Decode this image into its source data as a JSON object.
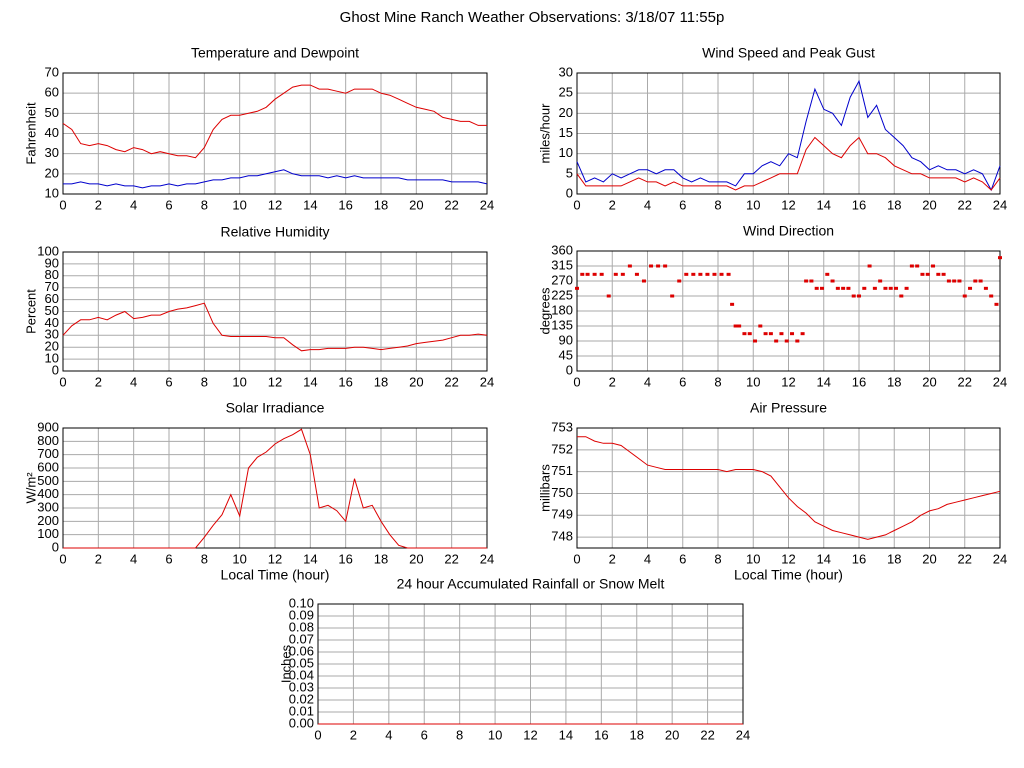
{
  "title": "Ghost Mine Ranch Weather Observations: 3/18/07 11:55p",
  "chart_data": [
    {
      "type": "line",
      "title": "Temperature and Dewpoint",
      "y_label": "Fahrenheit",
      "xlim": [
        0,
        24
      ],
      "xticks": [
        0,
        2,
        4,
        6,
        8,
        10,
        12,
        14,
        16,
        18,
        20,
        22,
        24
      ],
      "ylim": [
        10,
        70
      ],
      "yticks": [
        10,
        20,
        30,
        40,
        50,
        60,
        70
      ],
      "grid": true,
      "x": [
        0,
        0.5,
        1,
        1.5,
        2,
        2.5,
        3,
        3.5,
        4,
        4.5,
        5,
        5.5,
        6,
        6.5,
        7,
        7.5,
        8,
        8.5,
        9,
        9.5,
        10,
        10.5,
        11,
        11.5,
        12,
        12.5,
        13,
        13.5,
        14,
        14.5,
        15,
        15.5,
        16,
        16.5,
        17,
        17.5,
        18,
        18.5,
        19,
        19.5,
        20,
        20.5,
        21,
        21.5,
        22,
        22.5,
        23,
        23.5,
        24
      ],
      "series": [
        {
          "color": "#dd0000",
          "values": [
            45,
            42,
            35,
            34,
            35,
            34,
            32,
            31,
            33,
            32,
            30,
            31,
            30,
            29,
            29,
            28,
            33,
            42,
            47,
            49,
            49,
            50,
            51,
            53,
            57,
            60,
            63,
            64,
            64,
            62,
            62,
            61,
            60,
            62,
            62,
            62,
            60,
            59,
            57,
            55,
            53,
            52,
            51,
            48,
            47,
            46,
            46,
            44,
            44
          ]
        },
        {
          "color": "#0000cc",
          "values": [
            15,
            15,
            16,
            15,
            15,
            14,
            15,
            14,
            14,
            13,
            14,
            14,
            15,
            14,
            15,
            15,
            16,
            17,
            17,
            18,
            18,
            19,
            19,
            20,
            21,
            22,
            20,
            19,
            19,
            19,
            18,
            19,
            18,
            19,
            18,
            18,
            18,
            18,
            18,
            17,
            17,
            17,
            17,
            17,
            16,
            16,
            16,
            16,
            15
          ]
        }
      ]
    },
    {
      "type": "line",
      "title": "Wind Speed and Peak Gust",
      "y_label": "miles/hour",
      "xlim": [
        0,
        24
      ],
      "xticks": [
        0,
        2,
        4,
        6,
        8,
        10,
        12,
        14,
        16,
        18,
        20,
        22,
        24
      ],
      "ylim": [
        0,
        30
      ],
      "yticks": [
        0,
        5,
        10,
        15,
        20,
        25,
        30
      ],
      "grid": true,
      "x": [
        0,
        0.5,
        1,
        1.5,
        2,
        2.5,
        3,
        3.5,
        4,
        4.5,
        5,
        5.5,
        6,
        6.5,
        7,
        7.5,
        8,
        8.5,
        9,
        9.5,
        10,
        10.5,
        11,
        11.5,
        12,
        12.5,
        13,
        13.5,
        14,
        14.5,
        15,
        15.5,
        16,
        16.5,
        17,
        17.5,
        18,
        18.5,
        19,
        19.5,
        20,
        20.5,
        21,
        21.5,
        22,
        22.5,
        23,
        23.5,
        24
      ],
      "series": [
        {
          "color": "#0000cc",
          "values": [
            8,
            3,
            4,
            3,
            5,
            4,
            5,
            6,
            6,
            5,
            6,
            6,
            4,
            3,
            4,
            3,
            3,
            3,
            2,
            5,
            5,
            7,
            8,
            7,
            10,
            9,
            18,
            26,
            21,
            20,
            17,
            24,
            28,
            19,
            22,
            16,
            14,
            12,
            9,
            8,
            6,
            7,
            6,
            6,
            5,
            6,
            5,
            1,
            7
          ]
        },
        {
          "color": "#dd0000",
          "values": [
            5,
            2,
            2,
            2,
            2,
            2,
            3,
            4,
            3,
            3,
            2,
            3,
            2,
            2,
            2,
            2,
            2,
            2,
            1,
            2,
            2,
            3,
            4,
            5,
            5,
            5,
            11,
            14,
            12,
            10,
            9,
            12,
            14,
            10,
            10,
            9,
            7,
            6,
            5,
            5,
            4,
            4,
            4,
            4,
            3,
            4,
            3,
            1,
            4
          ]
        }
      ]
    },
    {
      "type": "line",
      "title": "Relative Humidity",
      "y_label": "Percent",
      "xlim": [
        0,
        24
      ],
      "xticks": [
        0,
        2,
        4,
        6,
        8,
        10,
        12,
        14,
        16,
        18,
        20,
        22,
        24
      ],
      "ylim": [
        0,
        100
      ],
      "yticks": [
        0,
        10,
        20,
        30,
        40,
        50,
        60,
        70,
        80,
        90,
        100
      ],
      "grid": true,
      "x": [
        0,
        0.5,
        1,
        1.5,
        2,
        2.5,
        3,
        3.5,
        4,
        4.5,
        5,
        5.5,
        6,
        6.5,
        7,
        7.5,
        8,
        8.5,
        9,
        9.5,
        10,
        10.5,
        11,
        11.5,
        12,
        12.5,
        13,
        13.5,
        14,
        14.5,
        15,
        15.5,
        16,
        16.5,
        17,
        17.5,
        18,
        18.5,
        19,
        19.5,
        20,
        20.5,
        21,
        21.5,
        22,
        22.5,
        23,
        23.5,
        24
      ],
      "series": [
        {
          "color": "#dd0000",
          "values": [
            30,
            38,
            43,
            43,
            45,
            43,
            47,
            50,
            44,
            45,
            47,
            47,
            50,
            52,
            53,
            55,
            57,
            40,
            30,
            29,
            29,
            29,
            29,
            29,
            28,
            28,
            22,
            17,
            18,
            18,
            19,
            19,
            19,
            20,
            20,
            19,
            18,
            19,
            20,
            21,
            23,
            24,
            25,
            26,
            28,
            30,
            30,
            31,
            30
          ]
        }
      ]
    },
    {
      "type": "scatter",
      "title": "Wind Direction",
      "y_label": "degrees",
      "xlim": [
        0,
        24
      ],
      "xticks": [
        0,
        2,
        4,
        6,
        8,
        10,
        12,
        14,
        16,
        18,
        20,
        22,
        24
      ],
      "ylim": [
        0,
        360
      ],
      "yticks": [
        0,
        45,
        90,
        135,
        180,
        225,
        270,
        315,
        360
      ],
      "grid": true,
      "x": [
        0,
        0.3,
        0.6,
        1,
        1.4,
        1.8,
        2.2,
        2.6,
        3,
        3.4,
        3.8,
        4.2,
        4.6,
        5,
        5.4,
        5.8,
        6.2,
        6.6,
        7,
        7.4,
        7.8,
        8.2,
        8.6,
        8.8,
        9,
        9.2,
        9.5,
        9.8,
        10.1,
        10.4,
        10.7,
        11,
        11.3,
        11.6,
        11.9,
        12.2,
        12.5,
        12.8,
        13,
        13.3,
        13.6,
        13.9,
        14.2,
        14.5,
        14.8,
        15.1,
        15.4,
        15.7,
        16,
        16.3,
        16.6,
        16.9,
        17.2,
        17.5,
        17.8,
        18.1,
        18.4,
        18.7,
        19,
        19.3,
        19.6,
        19.9,
        20.2,
        20.5,
        20.8,
        21.1,
        21.4,
        21.7,
        22,
        22.3,
        22.6,
        22.9,
        23.2,
        23.5,
        23.8,
        24
      ],
      "series": [
        {
          "color": "#dd0000",
          "values": [
            248,
            290,
            290,
            290,
            290,
            225,
            290,
            290,
            315,
            290,
            270,
            315,
            315,
            315,
            225,
            270,
            290,
            290,
            290,
            290,
            290,
            290,
            290,
            200,
            135,
            135,
            112,
            112,
            90,
            135,
            112,
            112,
            90,
            112,
            90,
            112,
            90,
            112,
            270,
            270,
            248,
            248,
            290,
            270,
            248,
            248,
            248,
            225,
            225,
            248,
            315,
            248,
            270,
            248,
            248,
            248,
            225,
            248,
            315,
            315,
            290,
            290,
            315,
            290,
            290,
            270,
            270,
            270,
            225,
            248,
            270,
            270,
            248,
            225,
            200,
            340
          ]
        }
      ]
    },
    {
      "type": "line",
      "title": "Solar Irradiance",
      "y_label": "W/m²",
      "x_label": "Local Time (hour)",
      "xlim": [
        0,
        24
      ],
      "xticks": [
        0,
        2,
        4,
        6,
        8,
        10,
        12,
        14,
        16,
        18,
        20,
        22,
        24
      ],
      "ylim": [
        0,
        900
      ],
      "yticks": [
        0,
        100,
        200,
        300,
        400,
        500,
        600,
        700,
        800,
        900
      ],
      "grid": true,
      "x": [
        0,
        0.5,
        1,
        1.5,
        2,
        2.5,
        3,
        3.5,
        4,
        4.5,
        5,
        5.5,
        6,
        6.5,
        7,
        7.5,
        8,
        8.5,
        9,
        9.5,
        10,
        10.5,
        11,
        11.5,
        12,
        12.5,
        13,
        13.5,
        14,
        14.5,
        15,
        15.5,
        16,
        16.5,
        17,
        17.5,
        18,
        18.5,
        19,
        19.5,
        20,
        20.5,
        21,
        21.5,
        22,
        22.5,
        23,
        23.5,
        24
      ],
      "series": [
        {
          "color": "#dd0000",
          "values": [
            0,
            0,
            0,
            0,
            0,
            0,
            0,
            0,
            0,
            0,
            0,
            0,
            0,
            0,
            0,
            0,
            80,
            170,
            250,
            400,
            240,
            600,
            680,
            720,
            780,
            820,
            850,
            890,
            700,
            300,
            320,
            280,
            200,
            520,
            300,
            320,
            200,
            100,
            20,
            0,
            0,
            0,
            0,
            0,
            0,
            0,
            0,
            0,
            0
          ]
        }
      ]
    },
    {
      "type": "line",
      "title": "Air Pressure",
      "y_label": "millibars",
      "x_label": "Local Time (hour)",
      "xlim": [
        0,
        24
      ],
      "xticks": [
        0,
        2,
        4,
        6,
        8,
        10,
        12,
        14,
        16,
        18,
        20,
        22,
        24
      ],
      "ylim": [
        747.5,
        753
      ],
      "yticks": [
        748,
        749,
        750,
        751,
        752,
        753
      ],
      "grid": true,
      "x": [
        0,
        0.5,
        1,
        1.5,
        2,
        2.5,
        3,
        3.5,
        4,
        4.5,
        5,
        5.5,
        6,
        6.5,
        7,
        7.5,
        8,
        8.5,
        9,
        9.5,
        10,
        10.5,
        11,
        11.5,
        12,
        12.5,
        13,
        13.5,
        14,
        14.5,
        15,
        15.5,
        16,
        16.5,
        17,
        17.5,
        18,
        18.5,
        19,
        19.5,
        20,
        20.5,
        21,
        21.5,
        22,
        22.5,
        23,
        23.5,
        24
      ],
      "series": [
        {
          "color": "#dd0000",
          "values": [
            752.6,
            752.6,
            752.4,
            752.3,
            752.3,
            752.2,
            751.9,
            751.6,
            751.3,
            751.2,
            751.1,
            751.1,
            751.1,
            751.1,
            751.1,
            751.1,
            751.1,
            751.0,
            751.1,
            751.1,
            751.1,
            751.0,
            750.8,
            750.3,
            749.8,
            749.4,
            749.1,
            748.7,
            748.5,
            748.3,
            748.2,
            748.1,
            748.0,
            747.9,
            748.0,
            748.1,
            748.3,
            748.5,
            748.7,
            749.0,
            749.2,
            749.3,
            749.5,
            749.6,
            749.7,
            749.8,
            749.9,
            750.0,
            750.1
          ]
        }
      ]
    },
    {
      "type": "line",
      "title": "24 hour Accumulated Rainfall or Snow Melt",
      "y_label": "Inches",
      "xlim": [
        0,
        24
      ],
      "xticks": [
        0,
        2,
        4,
        6,
        8,
        10,
        12,
        14,
        16,
        18,
        20,
        22,
        24
      ],
      "ylim": [
        0,
        0.1
      ],
      "yticks": [
        {
          "value": 0,
          "label": "0.00"
        },
        {
          "value": 0.01,
          "label": "0.01"
        },
        {
          "value": 0.02,
          "label": "0.02"
        },
        {
          "value": 0.03,
          "label": "0.03"
        },
        {
          "value": 0.04,
          "label": "0.04"
        },
        {
          "value": 0.05,
          "label": "0.05"
        },
        {
          "value": 0.06,
          "label": "0.06"
        },
        {
          "value": 0.07,
          "label": "0.07"
        },
        {
          "value": 0.08,
          "label": "0.08"
        },
        {
          "value": 0.09,
          "label": "0.09"
        },
        {
          "value": 0.1,
          "label": "0.10"
        }
      ],
      "grid": true,
      "x": [
        0,
        24
      ],
      "series": [
        {
          "color": "#dd0000",
          "values": [
            0,
            0
          ]
        }
      ]
    }
  ]
}
